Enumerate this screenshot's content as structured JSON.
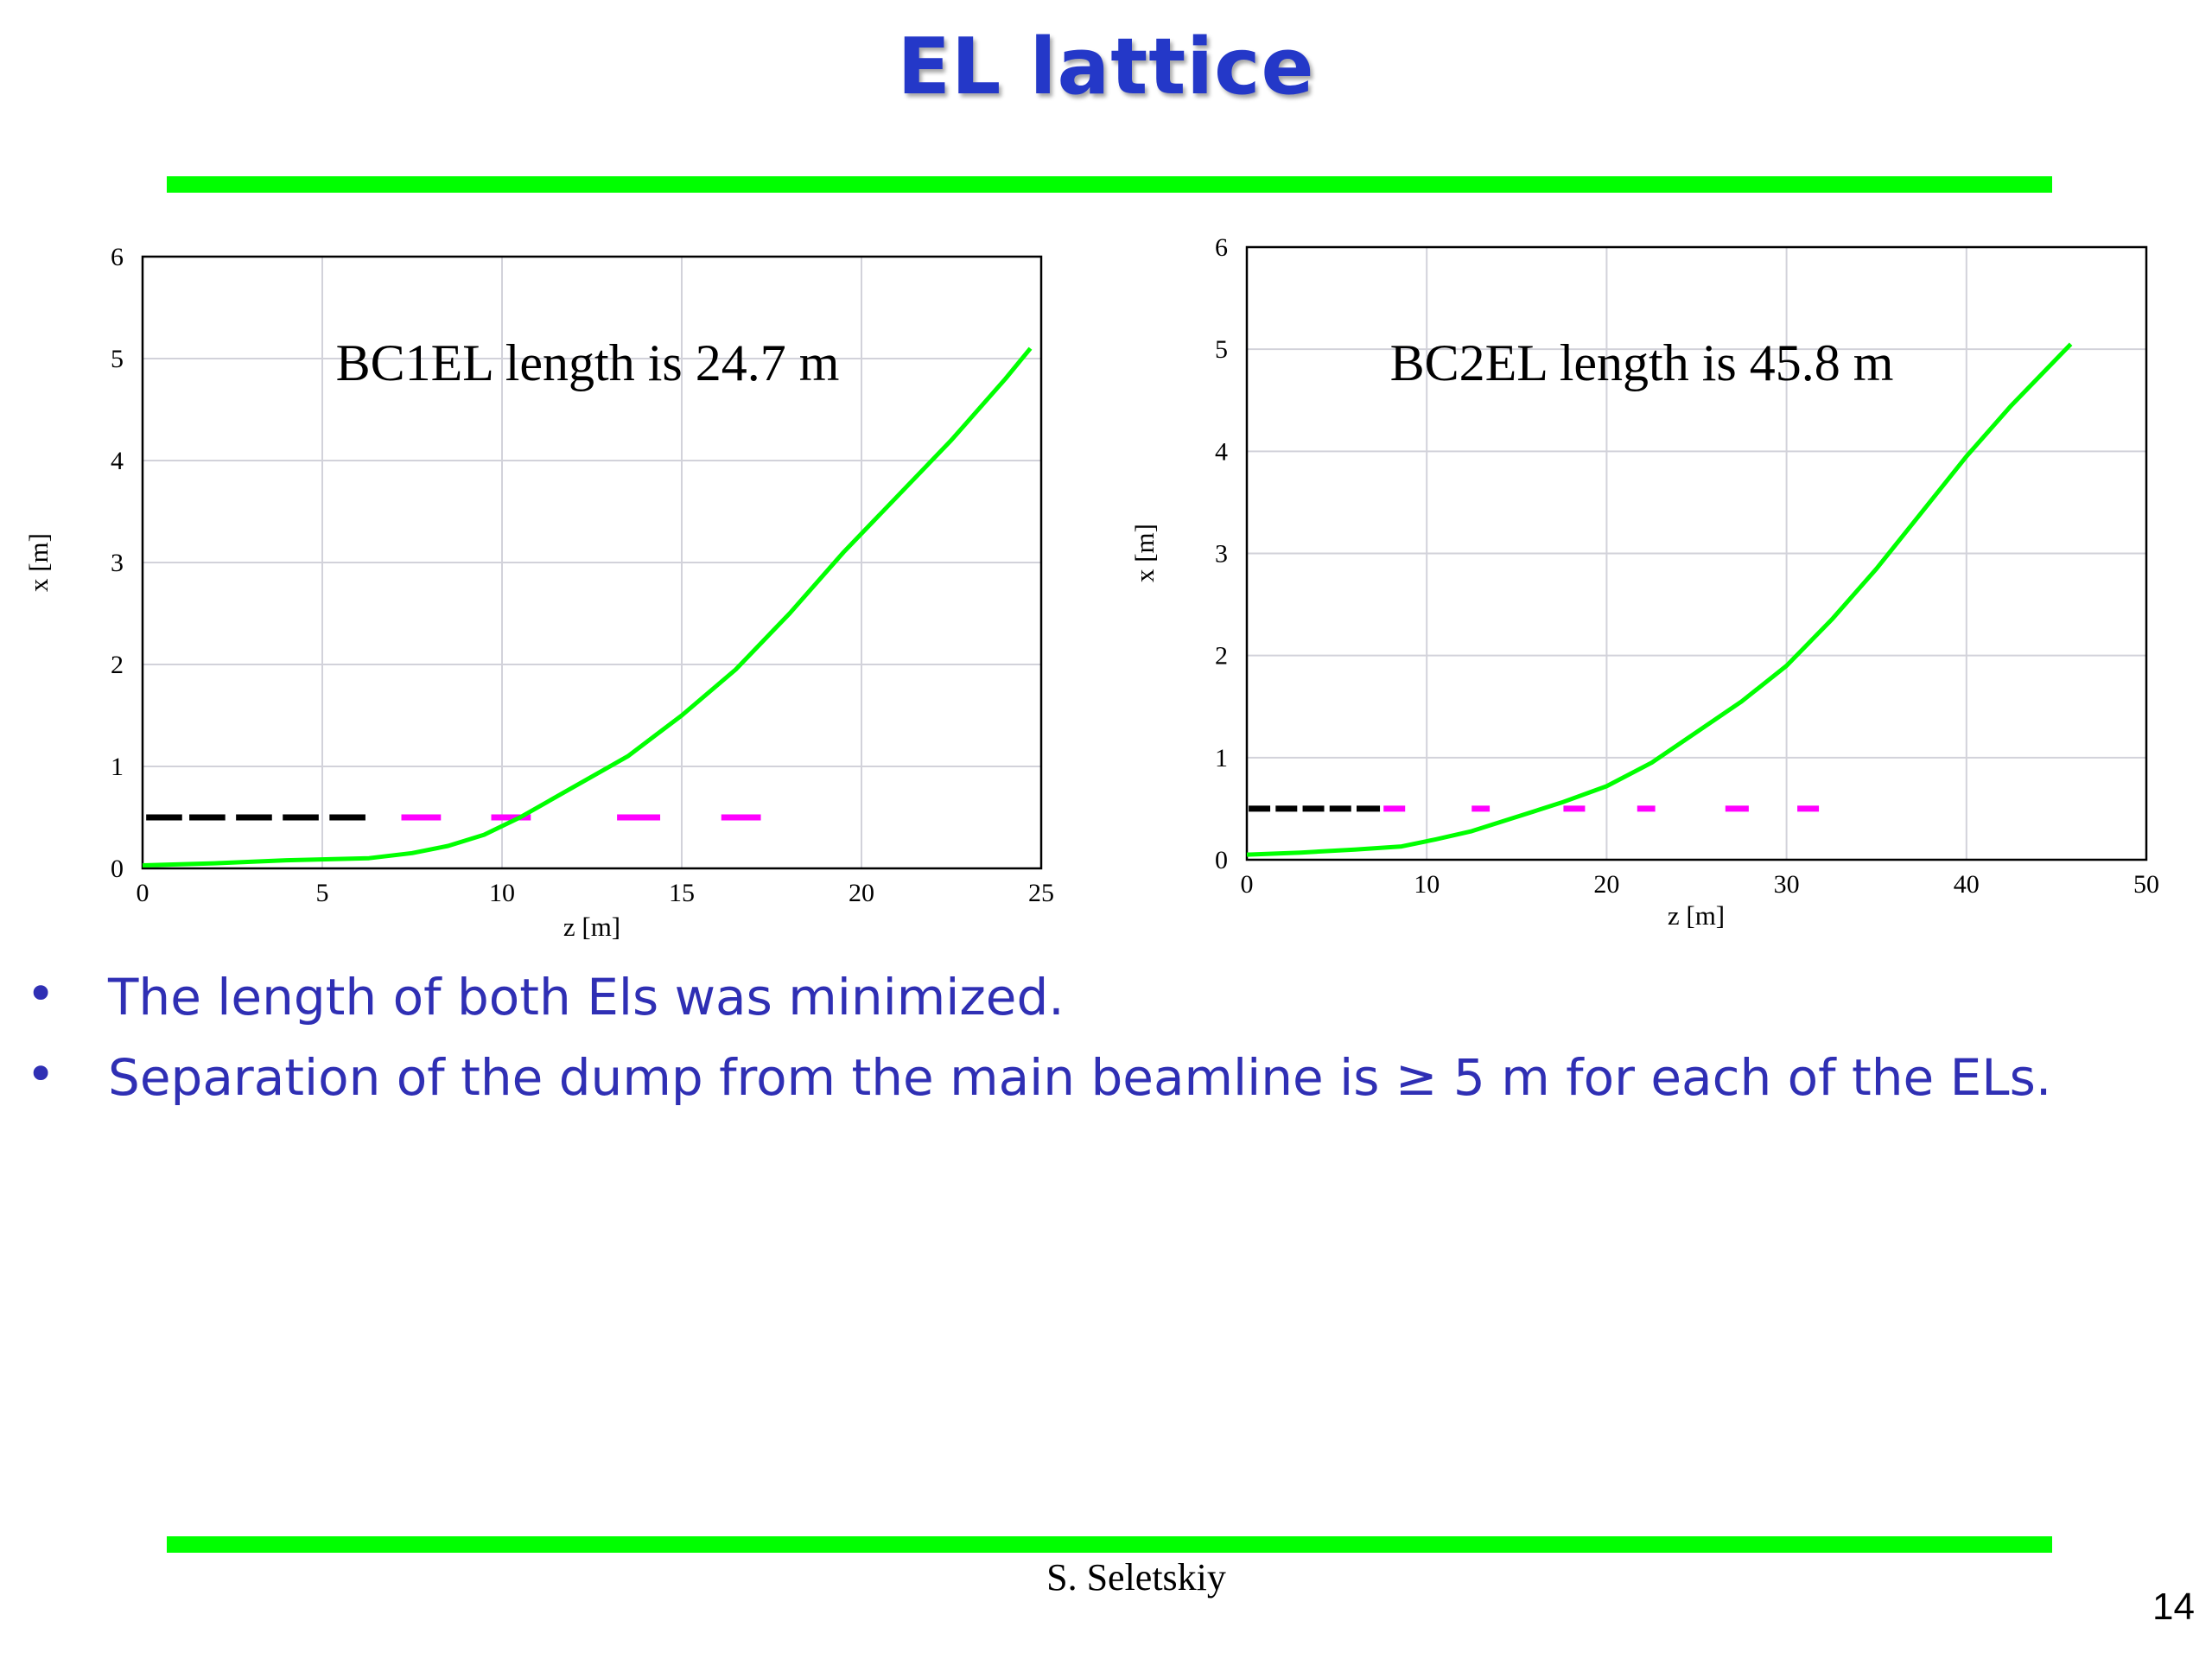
{
  "slide": {
    "title": "EL lattice",
    "accent_color": "#00ff00",
    "title_color": "#2438c8",
    "text_color": "#2f2fb4",
    "bullets": [
      "The length of both Els was minimized.",
      "Separation of the dump from the main beamline is ≥ 5 m for each of the ELs."
    ],
    "author": "S. Seletskiy",
    "page_number": "14"
  },
  "chart_data": [
    {
      "type": "line",
      "annotation": "BC1EL length is 24.7 m",
      "xlabel": "z [m]",
      "ylabel": "x [m]",
      "xlim": [
        0,
        25
      ],
      "ylim": [
        0,
        6
      ],
      "xticks": [
        "0",
        "5",
        "10",
        "15",
        "20",
        "25"
      ],
      "yticks": [
        "0",
        "1",
        "2",
        "3",
        "4",
        "5",
        "6"
      ],
      "grid": true,
      "series": [
        {
          "style": "solid",
          "color": "#00ff00",
          "x": [
            0,
            2,
            4,
            6.3,
            7.5,
            8.5,
            9.5,
            10.5,
            12,
            13.5,
            15,
            16.5,
            18,
            19.5,
            21,
            22.5,
            24,
            24.7
          ],
          "y": [
            0.03,
            0.05,
            0.08,
            0.1,
            0.15,
            0.22,
            0.33,
            0.5,
            0.8,
            1.1,
            1.5,
            1.95,
            2.5,
            3.1,
            3.65,
            4.2,
            4.8,
            5.1
          ]
        }
      ],
      "segments": [
        {
          "color": "#000000",
          "y": 0.5,
          "x": [
            [
              0.1,
              1.1
            ],
            [
              1.3,
              2.3
            ],
            [
              2.6,
              3.6
            ],
            [
              3.9,
              4.9
            ],
            [
              5.2,
              6.2
            ]
          ]
        },
        {
          "color": "#ff00ff",
          "y": 0.5,
          "x": [
            [
              7.2,
              8.3
            ],
            [
              9.7,
              10.8
            ],
            [
              13.2,
              14.4
            ],
            [
              16.1,
              17.2
            ]
          ]
        }
      ]
    },
    {
      "type": "line",
      "annotation": "BC2EL length is 45.8 m",
      "xlabel": "z [m]",
      "ylabel": "x [m]",
      "xlim": [
        0,
        50
      ],
      "ylim": [
        0,
        6
      ],
      "xticks": [
        "0",
        "10",
        "20",
        "30",
        "40",
        "50"
      ],
      "yticks": [
        "0",
        "1",
        "2",
        "3",
        "4",
        "5",
        "6"
      ],
      "grid": true,
      "series": [
        {
          "style": "solid",
          "color": "#00ff00",
          "x": [
            0,
            3,
            6,
            8.6,
            10.5,
            12.5,
            15,
            17.5,
            20,
            22.5,
            25,
            27.5,
            30,
            32.5,
            35,
            37.5,
            40,
            42.5,
            45.8
          ],
          "y": [
            0.05,
            0.07,
            0.1,
            0.13,
            0.2,
            0.28,
            0.42,
            0.56,
            0.72,
            0.95,
            1.25,
            1.55,
            1.9,
            2.35,
            2.85,
            3.4,
            3.95,
            4.45,
            5.05
          ]
        }
      ],
      "segments": [
        {
          "color": "#000000",
          "y": 0.5,
          "x": [
            [
              0.1,
              1.3
            ],
            [
              1.6,
              2.8
            ],
            [
              3.1,
              4.3
            ],
            [
              4.6,
              5.8
            ],
            [
              6.1,
              7.4
            ]
          ]
        },
        {
          "color": "#ff00ff",
          "y": 0.5,
          "x": [
            [
              7.6,
              8.8
            ],
            [
              12.5,
              13.5
            ],
            [
              17.6,
              18.8
            ],
            [
              21.7,
              22.7
            ],
            [
              26.6,
              27.9
            ],
            [
              30.6,
              31.8
            ]
          ]
        }
      ]
    }
  ]
}
